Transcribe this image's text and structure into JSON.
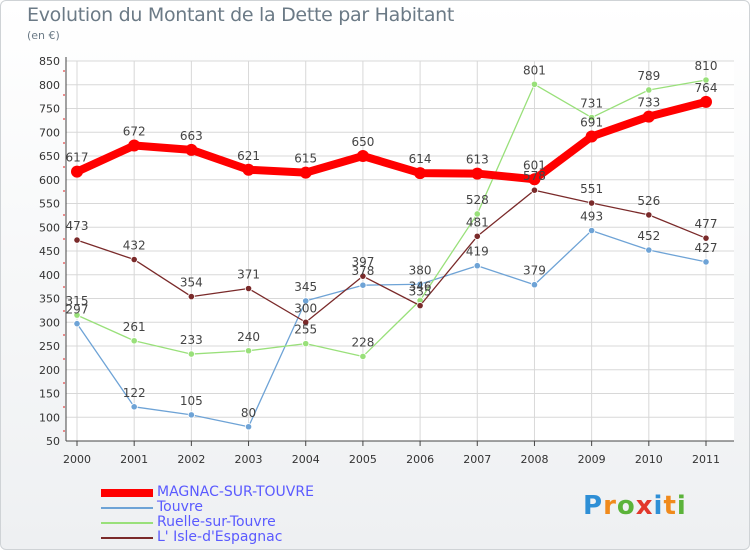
{
  "chart_data": {
    "type": "line",
    "title": "Evolution du Montant de la Dette par Habitant",
    "subtitle": "(en €)",
    "x": [
      "2000",
      "2001",
      "2002",
      "2003",
      "2004",
      "2005",
      "2006",
      "2007",
      "2008",
      "2009",
      "2010",
      "2011"
    ],
    "ylim": [
      50,
      850
    ],
    "yticks": [
      50,
      100,
      150,
      200,
      250,
      300,
      350,
      400,
      450,
      500,
      550,
      600,
      650,
      700,
      750,
      800,
      850
    ],
    "grid": true,
    "legend_position": "bottom-left",
    "series": [
      {
        "name": "MAGNAC-SUR-TOUVRE",
        "color": "#ff0000",
        "label_color": "#5a5aff",
        "values": [
          617,
          672,
          663,
          621,
          615,
          650,
          614,
          613,
          601,
          691,
          733,
          764
        ]
      },
      {
        "name": "Touvre",
        "color": "#6ea3d6",
        "label_color": "#5a5aff",
        "values": [
          297,
          122,
          105,
          80,
          345,
          378,
          380,
          419,
          379,
          493,
          452,
          427
        ]
      },
      {
        "name": "Ruelle-sur-Touvre",
        "color": "#99e07a",
        "label_color": "#5a5aff",
        "values": [
          315,
          261,
          233,
          240,
          255,
          228,
          346,
          528,
          801,
          731,
          789,
          810
        ]
      },
      {
        "name": "L' Isle-d'Espagnac",
        "color": "#7a2a2a",
        "label_color": "#5a5aff",
        "values": [
          473,
          432,
          354,
          371,
          300,
          397,
          335,
          481,
          578,
          551,
          526,
          477
        ]
      }
    ]
  },
  "logo": {
    "text": "Proxiti",
    "colors": [
      "#2e8fd6",
      "#f08a1c",
      "#5bb33a",
      "#e2372b",
      "#2e8fd6",
      "#f08a1c",
      "#5bb33a"
    ]
  }
}
